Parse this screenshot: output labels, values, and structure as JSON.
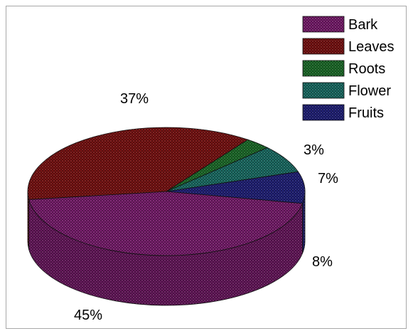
{
  "chart_data": {
    "type": "pie",
    "categories": [
      "Bark",
      "Leaves",
      "Roots",
      "Flower",
      "Fruits"
    ],
    "values": [
      45,
      37,
      3,
      7,
      8
    ],
    "value_labels": [
      "45%",
      "37%",
      "3%",
      "7%",
      "8%"
    ],
    "colors": [
      "#7a1f6f",
      "#7a1414",
      "#1f6e2c",
      "#1d6e66",
      "#23237a"
    ],
    "legend_position": "top-right",
    "style": "3d-pie"
  }
}
